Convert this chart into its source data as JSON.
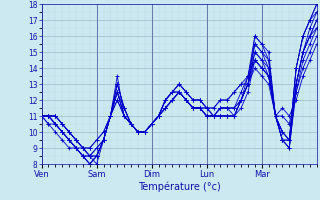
{
  "xlabel": "Température (°c)",
  "background_color": "#cce8f0",
  "grid_color_minor": "#bbddee",
  "grid_color_major": "#99bbcc",
  "line_color": "#0000cc",
  "ylim": [
    8,
    18
  ],
  "yticks": [
    8,
    9,
    10,
    11,
    12,
    13,
    14,
    15,
    16,
    17,
    18
  ],
  "day_labels": [
    "Ven",
    "Sam",
    "Dim",
    "Lun",
    "Mar"
  ],
  "day_positions": [
    0,
    8,
    16,
    24,
    32
  ],
  "xlim": [
    0,
    40
  ],
  "series": [
    [
      11.0,
      11.0,
      11.0,
      10.5,
      10.0,
      9.5,
      9.0,
      8.5,
      8.0,
      9.5,
      11.0,
      13.5,
      11.0,
      10.5,
      10.0,
      10.0,
      10.5,
      11.0,
      12.0,
      12.5,
      13.0,
      12.5,
      12.0,
      12.0,
      11.5,
      11.0,
      11.5,
      11.5,
      11.0,
      12.0,
      13.0,
      16.0,
      15.5,
      15.0,
      11.0,
      10.0,
      9.5,
      14.0,
      16.0,
      17.0,
      18.0
    ],
    [
      11.0,
      11.0,
      10.5,
      10.0,
      9.5,
      9.0,
      8.5,
      8.0,
      8.5,
      9.5,
      11.0,
      13.0,
      11.5,
      10.5,
      10.0,
      10.0,
      10.5,
      11.0,
      12.0,
      12.5,
      12.5,
      12.0,
      11.5,
      11.5,
      11.0,
      11.0,
      11.0,
      11.0,
      11.0,
      12.0,
      13.0,
      15.5,
      15.0,
      14.5,
      11.0,
      9.5,
      9.0,
      13.0,
      15.0,
      16.5,
      17.5
    ],
    [
      11.0,
      10.5,
      10.5,
      10.0,
      9.5,
      9.0,
      8.5,
      8.0,
      8.5,
      9.5,
      11.0,
      12.5,
      11.5,
      10.5,
      10.0,
      10.0,
      10.5,
      11.0,
      12.0,
      12.5,
      12.5,
      12.0,
      11.5,
      11.5,
      11.0,
      11.0,
      11.0,
      11.0,
      11.0,
      12.0,
      13.0,
      15.0,
      14.5,
      14.0,
      11.0,
      9.5,
      9.0,
      13.0,
      15.0,
      16.0,
      17.0
    ],
    [
      11.0,
      11.0,
      11.0,
      10.5,
      10.0,
      9.5,
      9.0,
      8.5,
      8.5,
      9.5,
      11.0,
      13.0,
      11.5,
      10.5,
      10.0,
      10.0,
      10.5,
      11.0,
      12.0,
      12.5,
      13.0,
      12.5,
      12.0,
      12.0,
      11.5,
      11.0,
      11.0,
      11.0,
      11.0,
      12.0,
      13.5,
      16.0,
      15.5,
      14.5,
      11.0,
      10.0,
      9.5,
      14.0,
      16.0,
      17.0,
      18.0
    ],
    [
      11.0,
      11.0,
      10.5,
      10.0,
      9.5,
      9.0,
      8.5,
      8.0,
      8.5,
      9.5,
      11.0,
      12.5,
      11.0,
      10.5,
      10.0,
      10.0,
      10.5,
      11.0,
      11.5,
      12.0,
      12.5,
      12.0,
      11.5,
      11.5,
      11.0,
      11.0,
      11.0,
      11.0,
      11.0,
      11.5,
      12.5,
      14.5,
      14.0,
      13.5,
      11.0,
      9.5,
      9.0,
      12.5,
      14.5,
      15.5,
      16.5
    ],
    [
      11.0,
      11.0,
      11.0,
      10.5,
      10.0,
      9.5,
      9.0,
      8.5,
      8.5,
      9.5,
      11.0,
      13.0,
      11.5,
      10.5,
      10.0,
      10.0,
      10.5,
      11.0,
      12.0,
      12.5,
      13.0,
      12.5,
      12.0,
      12.0,
      11.5,
      11.0,
      11.5,
      11.5,
      11.5,
      12.5,
      13.5,
      15.5,
      15.0,
      14.0,
      11.0,
      10.0,
      9.5,
      14.0,
      16.0,
      17.0,
      17.5
    ],
    [
      11.0,
      11.0,
      11.0,
      10.5,
      10.0,
      9.5,
      9.0,
      9.0,
      9.5,
      10.0,
      11.0,
      12.0,
      11.0,
      10.5,
      10.0,
      10.0,
      10.5,
      11.0,
      11.5,
      12.0,
      12.5,
      12.0,
      11.5,
      11.5,
      11.5,
      11.5,
      12.0,
      12.0,
      12.5,
      13.0,
      13.5,
      14.5,
      14.0,
      13.5,
      11.0,
      11.0,
      10.5,
      12.5,
      14.0,
      15.0,
      16.0
    ],
    [
      11.0,
      11.0,
      10.5,
      10.0,
      9.5,
      9.0,
      8.5,
      8.5,
      9.0,
      9.5,
      11.0,
      12.5,
      11.0,
      10.5,
      10.0,
      10.0,
      10.5,
      11.0,
      11.5,
      12.0,
      12.5,
      12.0,
      11.5,
      11.5,
      11.0,
      11.0,
      11.5,
      11.5,
      11.5,
      12.0,
      13.0,
      15.0,
      14.5,
      13.5,
      11.0,
      9.5,
      9.5,
      13.0,
      15.0,
      16.0,
      17.0
    ],
    [
      11.0,
      11.0,
      10.5,
      10.0,
      9.5,
      9.0,
      9.0,
      9.0,
      9.5,
      10.0,
      11.0,
      12.0,
      11.0,
      10.5,
      10.0,
      10.0,
      10.5,
      11.0,
      11.5,
      12.0,
      12.5,
      12.0,
      11.5,
      11.5,
      11.5,
      11.5,
      12.0,
      12.0,
      12.5,
      13.0,
      13.0,
      14.0,
      13.5,
      13.0,
      11.0,
      11.5,
      11.0,
      12.0,
      13.5,
      14.5,
      15.5
    ],
    [
      11.0,
      10.5,
      10.0,
      9.5,
      9.0,
      9.0,
      8.5,
      8.5,
      9.0,
      9.5,
      11.0,
      12.5,
      11.0,
      10.5,
      10.0,
      10.0,
      10.5,
      11.0,
      11.5,
      12.0,
      12.5,
      12.0,
      11.5,
      11.5,
      11.0,
      11.0,
      11.5,
      11.5,
      11.5,
      12.0,
      13.0,
      14.5,
      14.0,
      13.5,
      11.0,
      9.5,
      9.5,
      13.0,
      15.0,
      16.0,
      16.5
    ]
  ]
}
